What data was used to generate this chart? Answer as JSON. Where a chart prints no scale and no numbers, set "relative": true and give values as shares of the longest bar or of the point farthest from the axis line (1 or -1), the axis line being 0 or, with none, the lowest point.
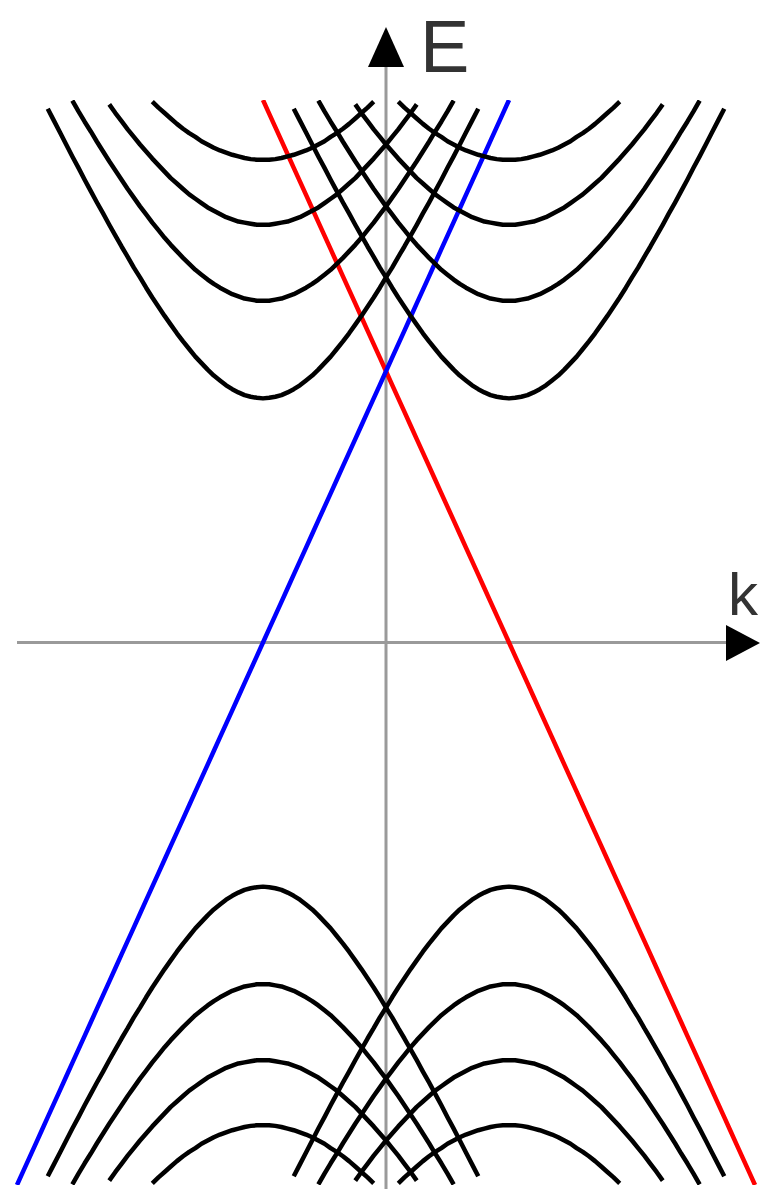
{
  "chart_data": {
    "type": "line",
    "xlabel": "k",
    "ylabel": "E",
    "relative": true,
    "marker": "none",
    "line_style": "solid",
    "categories": [
      null,
      null,
      null,
      null,
      null,
      null,
      null,
      null,
      null,
      null,
      null,
      null,
      null,
      null,
      null,
      null,
      null,
      null,
      null,
      null,
      null,
      null,
      null,
      null,
      null,
      null,
      null,
      null,
      null,
      null,
      null,
      null,
      null,
      null,
      null,
      null,
      null,
      null,
      null,
      null,
      null,
      null,
      null,
      null,
      null,
      null,
      null,
      null,
      null,
      null,
      null,
      null,
      null,
      null,
      null,
      null,
      null,
      null,
      null,
      null,
      null,
      null,
      null,
      null,
      null,
      null,
      null,
      null,
      null,
      null,
      null,
      null,
      null,
      null,
      null,
      null,
      null,
      null,
      null,
      null,
      null,
      null,
      null,
      null,
      null,
      null,
      null,
      null,
      null,
      null,
      null,
      null,
      null,
      null,
      null,
      null,
      null,
      null,
      null,
      null,
      null,
      null,
      null,
      null,
      null,
      null,
      null,
      null,
      null,
      null,
      null,
      null,
      null,
      null,
      null,
      null,
      null,
      null,
      null,
      null,
      null
    ],
    "series": [
      {
        "color": "#000000",
        "values": [
          null,
          null,
          null,
          null,
          null,
          0.984,
          0.962,
          0.94,
          0.918,
          0.896,
          0.875,
          0.853,
          0.832,
          0.811,
          0.791,
          0.77,
          0.75,
          0.73,
          0.711,
          0.691,
          0.673,
          0.654,
          0.636,
          0.619,
          0.602,
          0.586,
          0.57,
          0.555,
          0.541,
          0.527,
          0.515,
          0.503,
          0.492,
          0.483,
          0.474,
          0.467,
          0.461,
          0.456,
          0.453,
          0.451,
          0.45,
          0.451,
          0.453,
          0.456,
          0.461,
          0.467,
          0.474,
          0.483,
          0.492,
          0.503,
          0.515,
          0.527,
          0.541,
          0.555,
          0.57,
          0.586,
          0.602,
          0.619,
          0.636,
          0.654,
          0.673,
          0.691,
          0.711,
          0.73,
          0.75,
          0.77,
          0.791,
          0.811,
          0.832,
          0.853,
          0.875,
          0.896,
          0.918,
          0.94,
          0.962,
          0.984,
          null,
          null,
          null,
          null,
          null,
          null,
          null,
          null,
          null,
          null,
          null,
          null,
          null,
          null,
          null,
          null,
          null,
          null,
          null,
          null,
          null,
          null,
          null,
          null,
          null,
          null,
          null,
          null,
          null,
          null,
          null,
          null,
          null,
          null,
          null,
          null,
          null,
          null,
          null,
          null,
          null,
          null,
          null,
          null,
          null
        ]
      },
      {
        "color": "#000000",
        "values": [
          null,
          null,
          null,
          null,
          null,
          null,
          null,
          null,
          null,
          0.999,
          0.979,
          0.96,
          0.942,
          0.923,
          0.905,
          0.887,
          0.87,
          0.853,
          0.836,
          0.82,
          0.804,
          0.789,
          0.774,
          0.76,
          0.746,
          0.733,
          0.721,
          0.709,
          0.698,
          0.687,
          0.678,
          0.669,
          0.661,
          0.654,
          0.648,
          0.642,
          0.638,
          0.634,
          0.632,
          0.63,
          0.63,
          0.63,
          0.632,
          0.634,
          0.638,
          0.642,
          0.648,
          0.654,
          0.661,
          0.669,
          0.678,
          0.687,
          0.698,
          0.709,
          0.721,
          0.733,
          0.746,
          0.76,
          0.774,
          0.789,
          0.804,
          0.82,
          0.836,
          0.853,
          0.87,
          0.887,
          0.905,
          0.923,
          0.942,
          0.96,
          0.979,
          0.999,
          null,
          null,
          null,
          null,
          null,
          null,
          null,
          null,
          null,
          null,
          null,
          null,
          null,
          null,
          null,
          null,
          null,
          null,
          null,
          null,
          null,
          null,
          null,
          null,
          null,
          null,
          null,
          null,
          null,
          null,
          null,
          null,
          null,
          null,
          null,
          null,
          null,
          null,
          null,
          null,
          null,
          null,
          null,
          null,
          null,
          null,
          null,
          null,
          null
        ]
      },
      {
        "color": "#000000",
        "values": [
          null,
          null,
          null,
          null,
          null,
          null,
          null,
          null,
          null,
          null,
          null,
          null,
          null,
          null,
          null,
          0.992,
          0.976,
          0.961,
          0.946,
          0.932,
          0.918,
          0.905,
          0.892,
          0.88,
          0.868,
          0.856,
          0.846,
          0.836,
          0.826,
          0.818,
          0.81,
          0.802,
          0.796,
          0.79,
          0.784,
          0.78,
          0.776,
          0.774,
          0.772,
          0.77,
          0.77,
          0.77,
          0.772,
          0.774,
          0.776,
          0.78,
          0.784,
          0.79,
          0.796,
          0.802,
          0.81,
          0.818,
          0.826,
          0.836,
          0.846,
          0.856,
          0.868,
          0.88,
          0.892,
          0.905,
          0.918,
          0.932,
          0.946,
          0.961,
          0.976,
          0.992,
          null,
          null,
          null,
          null,
          null,
          null,
          null,
          null,
          null,
          null,
          null,
          null,
          null,
          null,
          null,
          null,
          null,
          null,
          null,
          null,
          null,
          null,
          null,
          null,
          null,
          null,
          null,
          null,
          null,
          null,
          null,
          null,
          null,
          null,
          null,
          null,
          null,
          null,
          null,
          null,
          null,
          null,
          null,
          null,
          null,
          null,
          null,
          null,
          null,
          null,
          null,
          null,
          null,
          null,
          null
        ]
      },
      {
        "color": "#000000",
        "values": [
          null,
          null,
          null,
          null,
          null,
          null,
          null,
          null,
          null,
          null,
          null,
          null,
          null,
          null,
          null,
          null,
          null,
          null,
          null,
          null,
          null,
          null,
          0.997,
          0.986,
          0.976,
          0.966,
          0.956,
          0.947,
          0.939,
          0.932,
          0.924,
          0.918,
          0.912,
          0.907,
          0.903,
          0.899,
          0.896,
          0.893,
          0.891,
          0.89,
          0.89,
          0.89,
          0.891,
          0.893,
          0.896,
          0.899,
          0.903,
          0.907,
          0.912,
          0.918,
          0.924,
          0.932,
          0.939,
          0.947,
          0.956,
          0.966,
          0.976,
          0.986,
          0.997,
          null,
          null,
          null,
          null,
          null,
          null,
          null,
          null,
          null,
          null,
          null,
          null,
          null,
          null,
          null,
          null,
          null,
          null,
          null,
          null,
          null,
          null,
          null,
          null,
          null,
          null,
          null,
          null,
          null,
          null,
          null,
          null,
          null,
          null,
          null,
          null,
          null,
          null,
          null,
          null,
          null,
          null,
          null,
          null,
          null,
          null,
          null,
          null,
          null,
          null,
          null,
          null,
          null,
          null,
          null,
          null,
          null,
          null,
          null,
          null,
          null,
          null
        ]
      },
      {
        "color": "#000000",
        "values": [
          null,
          null,
          null,
          null,
          null,
          null,
          null,
          null,
          null,
          null,
          null,
          null,
          null,
          null,
          null,
          null,
          null,
          null,
          null,
          null,
          null,
          null,
          null,
          null,
          null,
          null,
          null,
          null,
          null,
          null,
          null,
          null,
          null,
          null,
          null,
          null,
          null,
          null,
          null,
          null,
          null,
          null,
          null,
          null,
          null,
          0.984,
          0.962,
          0.94,
          0.918,
          0.896,
          0.875,
          0.853,
          0.832,
          0.811,
          0.791,
          0.77,
          0.75,
          0.73,
          0.711,
          0.691,
          0.673,
          0.654,
          0.636,
          0.619,
          0.602,
          0.586,
          0.57,
          0.555,
          0.541,
          0.527,
          0.515,
          0.503,
          0.492,
          0.483,
          0.474,
          0.467,
          0.461,
          0.456,
          0.453,
          0.451,
          0.45,
          0.451,
          0.453,
          0.456,
          0.461,
          0.467,
          0.474,
          0.483,
          0.492,
          0.503,
          0.515,
          0.527,
          0.541,
          0.555,
          0.57,
          0.586,
          0.602,
          0.619,
          0.636,
          0.654,
          0.673,
          0.691,
          0.711,
          0.73,
          0.75,
          0.77,
          0.791,
          0.811,
          0.832,
          0.853,
          0.875,
          0.896,
          0.918,
          0.94,
          0.962,
          0.984,
          null,
          null,
          null,
          null,
          null
        ]
      },
      {
        "color": "#000000",
        "values": [
          null,
          null,
          null,
          null,
          null,
          null,
          null,
          null,
          null,
          null,
          null,
          null,
          null,
          null,
          null,
          null,
          null,
          null,
          null,
          null,
          null,
          null,
          null,
          null,
          null,
          null,
          null,
          null,
          null,
          null,
          null,
          null,
          null,
          null,
          null,
          null,
          null,
          null,
          null,
          null,
          null,
          null,
          null,
          null,
          null,
          null,
          null,
          null,
          null,
          0.999,
          0.979,
          0.96,
          0.942,
          0.923,
          0.905,
          0.887,
          0.87,
          0.853,
          0.836,
          0.82,
          0.804,
          0.789,
          0.774,
          0.76,
          0.746,
          0.733,
          0.721,
          0.709,
          0.698,
          0.687,
          0.678,
          0.669,
          0.661,
          0.654,
          0.648,
          0.642,
          0.638,
          0.634,
          0.632,
          0.63,
          0.63,
          0.63,
          0.632,
          0.634,
          0.638,
          0.642,
          0.648,
          0.654,
          0.661,
          0.669,
          0.678,
          0.687,
          0.698,
          0.709,
          0.721,
          0.733,
          0.746,
          0.76,
          0.774,
          0.789,
          0.804,
          0.82,
          0.836,
          0.853,
          0.87,
          0.887,
          0.905,
          0.923,
          0.942,
          0.96,
          0.979,
          0.999,
          null,
          null,
          null,
          null,
          null,
          null,
          null,
          null,
          null
        ]
      },
      {
        "color": "#000000",
        "values": [
          null,
          null,
          null,
          null,
          null,
          null,
          null,
          null,
          null,
          null,
          null,
          null,
          null,
          null,
          null,
          null,
          null,
          null,
          null,
          null,
          null,
          null,
          null,
          null,
          null,
          null,
          null,
          null,
          null,
          null,
          null,
          null,
          null,
          null,
          null,
          null,
          null,
          null,
          null,
          null,
          null,
          null,
          null,
          null,
          null,
          null,
          null,
          null,
          null,
          null,
          null,
          null,
          null,
          null,
          null,
          0.992,
          0.976,
          0.961,
          0.946,
          0.932,
          0.918,
          0.905,
          0.892,
          0.88,
          0.868,
          0.856,
          0.846,
          0.836,
          0.826,
          0.818,
          0.81,
          0.802,
          0.796,
          0.79,
          0.784,
          0.78,
          0.776,
          0.774,
          0.772,
          0.77,
          0.77,
          0.77,
          0.772,
          0.774,
          0.776,
          0.78,
          0.784,
          0.79,
          0.796,
          0.802,
          0.81,
          0.818,
          0.826,
          0.836,
          0.846,
          0.856,
          0.868,
          0.88,
          0.892,
          0.905,
          0.918,
          0.932,
          0.946,
          0.961,
          0.976,
          0.992,
          null,
          null,
          null,
          null,
          null,
          null,
          null,
          null,
          null,
          null,
          null,
          null,
          null,
          null,
          null
        ]
      },
      {
        "color": "#000000",
        "values": [
          null,
          null,
          null,
          null,
          null,
          null,
          null,
          null,
          null,
          null,
          null,
          null,
          null,
          null,
          null,
          null,
          null,
          null,
          null,
          null,
          null,
          null,
          null,
          null,
          null,
          null,
          null,
          null,
          null,
          null,
          null,
          null,
          null,
          null,
          null,
          null,
          null,
          null,
          null,
          null,
          null,
          null,
          null,
          null,
          null,
          null,
          null,
          null,
          null,
          null,
          null,
          null,
          null,
          null,
          null,
          null,
          null,
          null,
          null,
          null,
          null,
          null,
          0.997,
          0.986,
          0.976,
          0.966,
          0.956,
          0.947,
          0.939,
          0.932,
          0.924,
          0.918,
          0.912,
          0.907,
          0.903,
          0.899,
          0.896,
          0.893,
          0.891,
          0.89,
          0.89,
          0.89,
          0.891,
          0.893,
          0.896,
          0.899,
          0.903,
          0.907,
          0.912,
          0.918,
          0.924,
          0.932,
          0.939,
          0.947,
          0.956,
          0.966,
          0.976,
          0.986,
          0.997,
          null,
          null,
          null,
          null,
          null,
          null,
          null,
          null,
          null,
          null,
          null,
          null,
          null,
          null,
          null,
          null,
          null,
          null,
          null,
          null,
          null,
          null
        ]
      },
      {
        "color": "#000000",
        "values": [
          null,
          null,
          null,
          null,
          null,
          -0.984,
          -0.962,
          -0.94,
          -0.918,
          -0.896,
          -0.875,
          -0.853,
          -0.832,
          -0.811,
          -0.791,
          -0.77,
          -0.75,
          -0.73,
          -0.711,
          -0.691,
          -0.673,
          -0.654,
          -0.636,
          -0.619,
          -0.602,
          -0.586,
          -0.57,
          -0.555,
          -0.541,
          -0.527,
          -0.515,
          -0.503,
          -0.492,
          -0.483,
          -0.474,
          -0.467,
          -0.461,
          -0.456,
          -0.453,
          -0.451,
          -0.45,
          -0.451,
          -0.453,
          -0.456,
          -0.461,
          -0.467,
          -0.474,
          -0.483,
          -0.492,
          -0.503,
          -0.515,
          -0.527,
          -0.541,
          -0.555,
          -0.57,
          -0.586,
          -0.602,
          -0.619,
          -0.636,
          -0.654,
          -0.673,
          -0.691,
          -0.711,
          -0.73,
          -0.75,
          -0.77,
          -0.791,
          -0.811,
          -0.832,
          -0.853,
          -0.875,
          -0.896,
          -0.918,
          -0.94,
          -0.962,
          -0.984,
          null,
          null,
          null,
          null,
          null,
          null,
          null,
          null,
          null,
          null,
          null,
          null,
          null,
          null,
          null,
          null,
          null,
          null,
          null,
          null,
          null,
          null,
          null,
          null,
          null,
          null,
          null,
          null,
          null,
          null,
          null,
          null,
          null,
          null,
          null,
          null,
          null,
          null,
          null,
          null,
          null,
          null,
          null,
          null,
          null
        ]
      },
      {
        "color": "#000000",
        "values": [
          null,
          null,
          null,
          null,
          null,
          null,
          null,
          null,
          null,
          -0.999,
          -0.979,
          -0.96,
          -0.942,
          -0.923,
          -0.905,
          -0.887,
          -0.87,
          -0.853,
          -0.836,
          -0.82,
          -0.804,
          -0.789,
          -0.774,
          -0.76,
          -0.746,
          -0.733,
          -0.721,
          -0.709,
          -0.698,
          -0.687,
          -0.678,
          -0.669,
          -0.661,
          -0.654,
          -0.648,
          -0.642,
          -0.638,
          -0.634,
          -0.632,
          -0.63,
          -0.63,
          -0.63,
          -0.632,
          -0.634,
          -0.638,
          -0.642,
          -0.648,
          -0.654,
          -0.661,
          -0.669,
          -0.678,
          -0.687,
          -0.698,
          -0.709,
          -0.721,
          -0.733,
          -0.746,
          -0.76,
          -0.774,
          -0.789,
          -0.804,
          -0.82,
          -0.836,
          -0.853,
          -0.87,
          -0.887,
          -0.905,
          -0.923,
          -0.942,
          -0.96,
          -0.979,
          -0.999,
          null,
          null,
          null,
          null,
          null,
          null,
          null,
          null,
          null,
          null,
          null,
          null,
          null,
          null,
          null,
          null,
          null,
          null,
          null,
          null,
          null,
          null,
          null,
          null,
          null,
          null,
          null,
          null,
          null,
          null,
          null,
          null,
          null,
          null,
          null,
          null,
          null,
          null,
          null,
          null,
          null,
          null,
          null,
          null,
          null,
          null,
          null,
          null,
          null
        ]
      },
      {
        "color": "#000000",
        "values": [
          null,
          null,
          null,
          null,
          null,
          null,
          null,
          null,
          null,
          null,
          null,
          null,
          null,
          null,
          null,
          -0.992,
          -0.976,
          -0.961,
          -0.946,
          -0.932,
          -0.918,
          -0.905,
          -0.892,
          -0.88,
          -0.868,
          -0.856,
          -0.846,
          -0.836,
          -0.826,
          -0.818,
          -0.81,
          -0.802,
          -0.796,
          -0.79,
          -0.784,
          -0.78,
          -0.776,
          -0.774,
          -0.772,
          -0.77,
          -0.77,
          -0.77,
          -0.772,
          -0.774,
          -0.776,
          -0.78,
          -0.784,
          -0.79,
          -0.796,
          -0.802,
          -0.81,
          -0.818,
          -0.826,
          -0.836,
          -0.846,
          -0.856,
          -0.868,
          -0.88,
          -0.892,
          -0.905,
          -0.918,
          -0.932,
          -0.946,
          -0.961,
          -0.976,
          -0.992,
          null,
          null,
          null,
          null,
          null,
          null,
          null,
          null,
          null,
          null,
          null,
          null,
          null,
          null,
          null,
          null,
          null,
          null,
          null,
          null,
          null,
          null,
          null,
          null,
          null,
          null,
          null,
          null,
          null,
          null,
          null,
          null,
          null,
          null,
          null,
          null,
          null,
          null,
          null,
          null,
          null,
          null,
          null,
          null,
          null,
          null,
          null,
          null,
          null,
          null,
          null,
          null,
          null,
          null,
          null
        ]
      },
      {
        "color": "#000000",
        "values": [
          null,
          null,
          null,
          null,
          null,
          null,
          null,
          null,
          null,
          null,
          null,
          null,
          null,
          null,
          null,
          null,
          null,
          null,
          null,
          null,
          null,
          null,
          -0.997,
          -0.986,
          -0.976,
          -0.966,
          -0.956,
          -0.947,
          -0.939,
          -0.932,
          -0.924,
          -0.918,
          -0.912,
          -0.907,
          -0.903,
          -0.899,
          -0.896,
          -0.893,
          -0.891,
          -0.89,
          -0.89,
          -0.89,
          -0.891,
          -0.893,
          -0.896,
          -0.899,
          -0.903,
          -0.907,
          -0.912,
          -0.918,
          -0.924,
          -0.932,
          -0.939,
          -0.947,
          -0.956,
          -0.966,
          -0.976,
          -0.986,
          -0.997,
          null,
          null,
          null,
          null,
          null,
          null,
          null,
          null,
          null,
          null,
          null,
          null,
          null,
          null,
          null,
          null,
          null,
          null,
          null,
          null,
          null,
          null,
          null,
          null,
          null,
          null,
          null,
          null,
          null,
          null,
          null,
          null,
          null,
          null,
          null,
          null,
          null,
          null,
          null,
          null,
          null,
          null,
          null,
          null,
          null,
          null,
          null,
          null,
          null,
          null,
          null,
          null,
          null,
          null,
          null,
          null,
          null,
          null,
          null,
          null,
          null,
          null
        ]
      },
      {
        "color": "#000000",
        "values": [
          null,
          null,
          null,
          null,
          null,
          null,
          null,
          null,
          null,
          null,
          null,
          null,
          null,
          null,
          null,
          null,
          null,
          null,
          null,
          null,
          null,
          null,
          null,
          null,
          null,
          null,
          null,
          null,
          null,
          null,
          null,
          null,
          null,
          null,
          null,
          null,
          null,
          null,
          null,
          null,
          null,
          null,
          null,
          null,
          null,
          -0.984,
          -0.962,
          -0.94,
          -0.918,
          -0.896,
          -0.875,
          -0.853,
          -0.832,
          -0.811,
          -0.791,
          -0.77,
          -0.75,
          -0.73,
          -0.711,
          -0.691,
          -0.673,
          -0.654,
          -0.636,
          -0.619,
          -0.602,
          -0.586,
          -0.57,
          -0.555,
          -0.541,
          -0.527,
          -0.515,
          -0.503,
          -0.492,
          -0.483,
          -0.474,
          -0.467,
          -0.461,
          -0.456,
          -0.453,
          -0.451,
          -0.45,
          -0.451,
          -0.453,
          -0.456,
          -0.461,
          -0.467,
          -0.474,
          -0.483,
          -0.492,
          -0.503,
          -0.515,
          -0.527,
          -0.541,
          -0.555,
          -0.57,
          -0.586,
          -0.602,
          -0.619,
          -0.636,
          -0.654,
          -0.673,
          -0.691,
          -0.711,
          -0.73,
          -0.75,
          -0.77,
          -0.791,
          -0.811,
          -0.832,
          -0.853,
          -0.875,
          -0.896,
          -0.918,
          -0.94,
          -0.962,
          -0.984,
          null,
          null,
          null,
          null,
          null
        ]
      },
      {
        "color": "#000000",
        "values": [
          null,
          null,
          null,
          null,
          null,
          null,
          null,
          null,
          null,
          null,
          null,
          null,
          null,
          null,
          null,
          null,
          null,
          null,
          null,
          null,
          null,
          null,
          null,
          null,
          null,
          null,
          null,
          null,
          null,
          null,
          null,
          null,
          null,
          null,
          null,
          null,
          null,
          null,
          null,
          null,
          null,
          null,
          null,
          null,
          null,
          null,
          null,
          null,
          null,
          -0.999,
          -0.979,
          -0.96,
          -0.942,
          -0.923,
          -0.905,
          -0.887,
          -0.87,
          -0.853,
          -0.836,
          -0.82,
          -0.804,
          -0.789,
          -0.774,
          -0.76,
          -0.746,
          -0.733,
          -0.721,
          -0.709,
          -0.698,
          -0.687,
          -0.678,
          -0.669,
          -0.661,
          -0.654,
          -0.648,
          -0.642,
          -0.638,
          -0.634,
          -0.632,
          -0.63,
          -0.63,
          -0.63,
          -0.632,
          -0.634,
          -0.638,
          -0.642,
          -0.648,
          -0.654,
          -0.661,
          -0.669,
          -0.678,
          -0.687,
          -0.698,
          -0.709,
          -0.721,
          -0.733,
          -0.746,
          -0.76,
          -0.774,
          -0.789,
          -0.804,
          -0.82,
          -0.836,
          -0.853,
          -0.87,
          -0.887,
          -0.905,
          -0.923,
          -0.942,
          -0.96,
          -0.979,
          -0.999,
          null,
          null,
          null,
          null,
          null,
          null,
          null,
          null,
          null
        ]
      },
      {
        "color": "#000000",
        "values": [
          null,
          null,
          null,
          null,
          null,
          null,
          null,
          null,
          null,
          null,
          null,
          null,
          null,
          null,
          null,
          null,
          null,
          null,
          null,
          null,
          null,
          null,
          null,
          null,
          null,
          null,
          null,
          null,
          null,
          null,
          null,
          null,
          null,
          null,
          null,
          null,
          null,
          null,
          null,
          null,
          null,
          null,
          null,
          null,
          null,
          null,
          null,
          null,
          null,
          null,
          null,
          null,
          null,
          null,
          null,
          -0.992,
          -0.976,
          -0.961,
          -0.946,
          -0.932,
          -0.918,
          -0.905,
          -0.892,
          -0.88,
          -0.868,
          -0.856,
          -0.846,
          -0.836,
          -0.826,
          -0.818,
          -0.81,
          -0.802,
          -0.796,
          -0.79,
          -0.784,
          -0.78,
          -0.776,
          -0.774,
          -0.772,
          -0.77,
          -0.77,
          -0.77,
          -0.772,
          -0.774,
          -0.776,
          -0.78,
          -0.784,
          -0.79,
          -0.796,
          -0.802,
          -0.81,
          -0.818,
          -0.826,
          -0.836,
          -0.846,
          -0.856,
          -0.868,
          -0.88,
          -0.892,
          -0.905,
          -0.918,
          -0.932,
          -0.946,
          -0.961,
          -0.976,
          -0.992,
          null,
          null,
          null,
          null,
          null,
          null,
          null,
          null,
          null,
          null,
          null,
          null,
          null,
          null,
          null
        ]
      },
      {
        "color": "#000000",
        "values": [
          null,
          null,
          null,
          null,
          null,
          null,
          null,
          null,
          null,
          null,
          null,
          null,
          null,
          null,
          null,
          null,
          null,
          null,
          null,
          null,
          null,
          null,
          null,
          null,
          null,
          null,
          null,
          null,
          null,
          null,
          null,
          null,
          null,
          null,
          null,
          null,
          null,
          null,
          null,
          null,
          null,
          null,
          null,
          null,
          null,
          null,
          null,
          null,
          null,
          null,
          null,
          null,
          null,
          null,
          null,
          null,
          null,
          null,
          null,
          null,
          null,
          null,
          -0.997,
          -0.986,
          -0.976,
          -0.966,
          -0.956,
          -0.947,
          -0.939,
          -0.932,
          -0.924,
          -0.918,
          -0.912,
          -0.907,
          -0.903,
          -0.899,
          -0.896,
          -0.893,
          -0.891,
          -0.89,
          -0.89,
          -0.89,
          -0.891,
          -0.893,
          -0.896,
          -0.899,
          -0.903,
          -0.907,
          -0.912,
          -0.918,
          -0.924,
          -0.932,
          -0.939,
          -0.947,
          -0.956,
          -0.966,
          -0.976,
          -0.986,
          -0.997,
          null,
          null,
          null,
          null,
          null,
          null,
          null,
          null,
          null,
          null,
          null,
          null,
          null,
          null,
          null,
          null,
          null,
          null,
          null,
          null,
          null,
          null
        ]
      },
      {
        "color": "#0000ff",
        "values": [
          -1,
          -0.975,
          -0.95,
          -0.925,
          -0.9,
          -0.875,
          -0.85,
          -0.825,
          -0.8,
          -0.775,
          -0.75,
          -0.725,
          -0.7,
          -0.675,
          -0.65,
          -0.625,
          -0.6,
          -0.575,
          -0.55,
          -0.525,
          -0.5,
          -0.475,
          -0.45,
          -0.425,
          -0.4,
          -0.375,
          -0.35,
          -0.325,
          -0.3,
          -0.275,
          -0.25,
          -0.225,
          -0.2,
          -0.175,
          -0.15,
          -0.125,
          -0.1,
          -0.075,
          -0.05,
          -0.025,
          0,
          0.025,
          0.05,
          0.075,
          0.1,
          0.125,
          0.15,
          0.175,
          0.2,
          0.225,
          0.25,
          0.275,
          0.3,
          0.325,
          0.35,
          0.375,
          0.4,
          0.425,
          0.45,
          0.475,
          0.5,
          0.525,
          0.55,
          0.575,
          0.6,
          0.625,
          0.65,
          0.675,
          0.7,
          0.725,
          0.75,
          0.775,
          0.8,
          0.825,
          0.85,
          0.875,
          0.9,
          0.925,
          0.95,
          0.975,
          1,
          null,
          null,
          null,
          null,
          null,
          null,
          null,
          null,
          null,
          null,
          null,
          null,
          null,
          null,
          null,
          null,
          null,
          null,
          null,
          null,
          null,
          null,
          null,
          null,
          null,
          null,
          null,
          null,
          null,
          null,
          null,
          null,
          null,
          null,
          null,
          null,
          null,
          null,
          null,
          null
        ]
      },
      {
        "color": "#ff0000",
        "values": [
          null,
          null,
          null,
          null,
          null,
          null,
          null,
          null,
          null,
          null,
          null,
          null,
          null,
          null,
          null,
          null,
          null,
          null,
          null,
          null,
          null,
          null,
          null,
          null,
          null,
          null,
          null,
          null,
          null,
          null,
          null,
          null,
          null,
          null,
          null,
          null,
          null,
          null,
          null,
          null,
          1,
          0.975,
          0.95,
          0.925,
          0.9,
          0.875,
          0.85,
          0.825,
          0.8,
          0.775,
          0.75,
          0.725,
          0.7,
          0.675,
          0.65,
          0.625,
          0.6,
          0.575,
          0.55,
          0.525,
          0.5,
          0.475,
          0.45,
          0.425,
          0.4,
          0.375,
          0.35,
          0.325,
          0.3,
          0.275,
          0.25,
          0.225,
          0.2,
          0.175,
          0.15,
          0.125,
          0.1,
          0.075,
          0.05,
          0.025,
          0,
          -0.025,
          -0.05,
          -0.075,
          -0.1,
          -0.125,
          -0.15,
          -0.175,
          -0.2,
          -0.225,
          -0.25,
          -0.275,
          -0.3,
          -0.325,
          -0.35,
          -0.375,
          -0.4,
          -0.425,
          -0.45,
          -0.475,
          -0.5,
          -0.525,
          -0.55,
          -0.575,
          -0.6,
          -0.625,
          -0.65,
          -0.675,
          -0.7,
          -0.725,
          -0.75,
          -0.775,
          -0.8,
          -0.825,
          -0.85,
          -0.875,
          -0.9,
          -0.925,
          -0.95,
          -0.975,
          -1
        ]
      }
    ]
  }
}
